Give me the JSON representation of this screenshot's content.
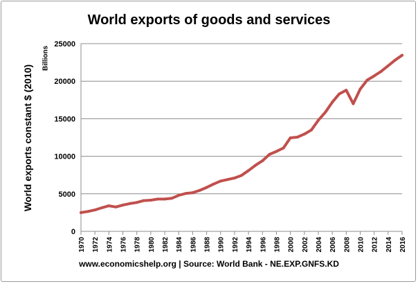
{
  "chart_data": {
    "type": "line",
    "title": "World exports of goods and services",
    "ylabel": "World exports constant $ (2010)",
    "unit_label": "Billions",
    "xlabel": "",
    "source": "www.economicshelp.org | Source: World Bank - NE.EXP.GNFS.KD",
    "ylim": [
      0,
      25000
    ],
    "y_ticks": [
      0,
      5000,
      10000,
      15000,
      20000,
      25000
    ],
    "xlim": [
      1970,
      2016
    ],
    "x_ticks": [
      1970,
      1972,
      1974,
      1976,
      1978,
      1980,
      1982,
      1984,
      1986,
      1988,
      1990,
      1992,
      1994,
      1996,
      1998,
      2000,
      2002,
      2004,
      2006,
      2008,
      2010,
      2012,
      2014,
      2016
    ],
    "grid": "horizontal",
    "legend": "none",
    "series": [
      {
        "color": "#c0504d",
        "x": [
          1970,
          1971,
          1972,
          1973,
          1974,
          1975,
          1976,
          1977,
          1978,
          1979,
          1980,
          1981,
          1982,
          1983,
          1984,
          1985,
          1986,
          1987,
          1988,
          1989,
          1990,
          1991,
          1992,
          1993,
          1994,
          1995,
          1996,
          1997,
          1998,
          1999,
          2000,
          2001,
          2002,
          2003,
          2004,
          2005,
          2006,
          2007,
          2008,
          2009,
          2010,
          2011,
          2012,
          2013,
          2014,
          2015,
          2016
        ],
        "values": [
          2500,
          2650,
          2850,
          3150,
          3400,
          3250,
          3500,
          3700,
          3850,
          4100,
          4150,
          4300,
          4300,
          4400,
          4800,
          5050,
          5150,
          5450,
          5850,
          6300,
          6700,
          6900,
          7100,
          7450,
          8100,
          8800,
          9400,
          10250,
          10650,
          11100,
          12450,
          12550,
          12950,
          13500,
          14800,
          15850,
          17200,
          18300,
          18800,
          17000,
          18950,
          20150,
          20700,
          21300,
          22050,
          22800,
          23450
        ]
      }
    ]
  }
}
